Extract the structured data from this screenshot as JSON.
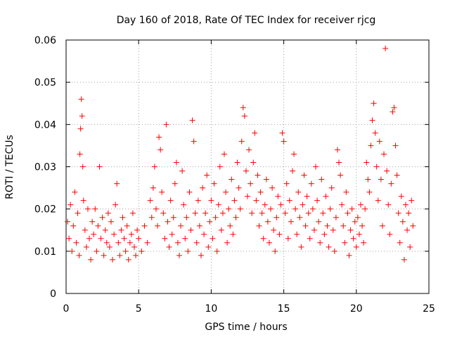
{
  "chart_data": {
    "type": "scatter",
    "title": "Day 160 of 2018, Rate Of TEC Index for receiver rjcg",
    "xlabel": "GPS time / hours",
    "ylabel": "ROTI / TECUs",
    "xlim": [
      0,
      25
    ],
    "ylim": [
      0,
      0.06
    ],
    "xticks": [
      0,
      5,
      10,
      15,
      20,
      25
    ],
    "yticks": [
      0,
      0.01,
      0.02,
      0.03,
      0.04,
      0.05,
      0.06
    ],
    "xtick_labels": [
      "0",
      "5",
      "10",
      "15",
      "20",
      "25"
    ],
    "ytick_labels": [
      "0",
      "0.01",
      "0.02",
      "0.03",
      "0.04",
      "0.05",
      "0.06"
    ],
    "grid": true,
    "marker": "+",
    "color": "#ff0000",
    "series": [
      {
        "name": "ROTI",
        "points": [
          [
            0.1,
            0.017
          ],
          [
            0.2,
            0.013
          ],
          [
            0.3,
            0.021
          ],
          [
            0.4,
            0.01
          ],
          [
            0.5,
            0.016
          ],
          [
            0.6,
            0.024
          ],
          [
            0.7,
            0.012
          ],
          [
            0.8,
            0.019
          ],
          [
            0.9,
            0.009
          ],
          [
            0.95,
            0.033
          ],
          [
            1.0,
            0.039
          ],
          [
            1.05,
            0.046
          ],
          [
            1.1,
            0.042
          ],
          [
            1.15,
            0.03
          ],
          [
            1.2,
            0.022
          ],
          [
            1.3,
            0.015
          ],
          [
            1.4,
            0.011
          ],
          [
            1.5,
            0.02
          ],
          [
            1.6,
            0.013
          ],
          [
            1.7,
            0.008
          ],
          [
            1.8,
            0.017
          ],
          [
            1.9,
            0.014
          ],
          [
            2.0,
            0.02
          ],
          [
            2.1,
            0.01
          ],
          [
            2.2,
            0.016
          ],
          [
            2.3,
            0.03
          ],
          [
            2.4,
            0.013
          ],
          [
            2.5,
            0.018
          ],
          [
            2.6,
            0.009
          ],
          [
            2.7,
            0.015
          ],
          [
            2.8,
            0.012
          ],
          [
            2.9,
            0.019
          ],
          [
            3.0,
            0.011
          ],
          [
            3.1,
            0.017
          ],
          [
            3.2,
            0.008
          ],
          [
            3.3,
            0.014
          ],
          [
            3.4,
            0.021
          ],
          [
            3.5,
            0.026
          ],
          [
            3.6,
            0.012
          ],
          [
            3.7,
            0.009
          ],
          [
            3.8,
            0.015
          ],
          [
            3.9,
            0.018
          ],
          [
            4.0,
            0.013
          ],
          [
            4.1,
            0.01
          ],
          [
            4.2,
            0.016
          ],
          [
            4.3,
            0.008
          ],
          [
            4.4,
            0.012
          ],
          [
            4.5,
            0.014
          ],
          [
            4.6,
            0.019
          ],
          [
            4.7,
            0.011
          ],
          [
            4.8,
            0.009
          ],
          [
            4.9,
            0.015
          ],
          [
            5.0,
            0.013
          ],
          [
            5.2,
            0.01
          ],
          [
            5.4,
            0.016
          ],
          [
            5.6,
            0.012
          ],
          [
            5.8,
            0.022
          ],
          [
            5.9,
            0.018
          ],
          [
            6.0,
            0.025
          ],
          [
            6.1,
            0.03
          ],
          [
            6.2,
            0.02
          ],
          [
            6.3,
            0.016
          ],
          [
            6.4,
            0.037
          ],
          [
            6.5,
            0.034
          ],
          [
            6.6,
            0.024
          ],
          [
            6.7,
            0.019
          ],
          [
            6.8,
            0.013
          ],
          [
            6.9,
            0.04
          ],
          [
            7.0,
            0.017
          ],
          [
            7.1,
            0.011
          ],
          [
            7.2,
            0.022
          ],
          [
            7.3,
            0.014
          ],
          [
            7.4,
            0.018
          ],
          [
            7.5,
            0.026
          ],
          [
            7.6,
            0.031
          ],
          [
            7.7,
            0.012
          ],
          [
            7.8,
            0.009
          ],
          [
            7.9,
            0.016
          ],
          [
            8.0,
            0.029
          ],
          [
            8.1,
            0.021
          ],
          [
            8.2,
            0.013
          ],
          [
            8.3,
            0.018
          ],
          [
            8.4,
            0.01
          ],
          [
            8.5,
            0.024
          ],
          [
            8.6,
            0.015
          ],
          [
            8.7,
            0.041
          ],
          [
            8.8,
            0.036
          ],
          [
            8.9,
            0.019
          ],
          [
            9.0,
            0.012
          ],
          [
            9.1,
            0.022
          ],
          [
            9.2,
            0.016
          ],
          [
            9.3,
            0.009
          ],
          [
            9.4,
            0.025
          ],
          [
            9.5,
            0.014
          ],
          [
            9.6,
            0.019
          ],
          [
            9.7,
            0.028
          ],
          [
            9.8,
            0.011
          ],
          [
            9.9,
            0.017
          ],
          [
            10.0,
            0.022
          ],
          [
            10.1,
            0.013
          ],
          [
            10.2,
            0.026
          ],
          [
            10.3,
            0.018
          ],
          [
            10.4,
            0.01
          ],
          [
            10.5,
            0.021
          ],
          [
            10.6,
            0.03
          ],
          [
            10.7,
            0.015
          ],
          [
            10.8,
            0.019
          ],
          [
            10.9,
            0.033
          ],
          [
            11.0,
            0.024
          ],
          [
            11.1,
            0.012
          ],
          [
            11.2,
            0.02
          ],
          [
            11.3,
            0.016
          ],
          [
            11.4,
            0.027
          ],
          [
            11.5,
            0.014
          ],
          [
            11.6,
            0.022
          ],
          [
            11.7,
            0.018
          ],
          [
            11.8,
            0.031
          ],
          [
            11.9,
            0.025
          ],
          [
            12.0,
            0.02
          ],
          [
            12.1,
            0.036
          ],
          [
            12.2,
            0.044
          ],
          [
            12.3,
            0.042
          ],
          [
            12.4,
            0.029
          ],
          [
            12.5,
            0.023
          ],
          [
            12.6,
            0.034
          ],
          [
            12.7,
            0.026
          ],
          [
            12.8,
            0.019
          ],
          [
            12.9,
            0.031
          ],
          [
            13.0,
            0.038
          ],
          [
            13.1,
            0.022
          ],
          [
            13.2,
            0.028
          ],
          [
            13.3,
            0.016
          ],
          [
            13.4,
            0.024
          ],
          [
            13.5,
            0.019
          ],
          [
            13.6,
            0.013
          ],
          [
            13.7,
            0.021
          ],
          [
            13.8,
            0.027
          ],
          [
            13.9,
            0.017
          ],
          [
            14.0,
            0.012
          ],
          [
            14.1,
            0.02
          ],
          [
            14.2,
            0.025
          ],
          [
            14.3,
            0.015
          ],
          [
            14.4,
            0.01
          ],
          [
            14.5,
            0.018
          ],
          [
            14.6,
            0.023
          ],
          [
            14.7,
            0.014
          ],
          [
            14.8,
            0.021
          ],
          [
            14.9,
            0.038
          ],
          [
            15.0,
            0.036
          ],
          [
            15.1,
            0.019
          ],
          [
            15.2,
            0.026
          ],
          [
            15.3,
            0.013
          ],
          [
            15.4,
            0.022
          ],
          [
            15.5,
            0.017
          ],
          [
            15.6,
            0.029
          ],
          [
            15.7,
            0.033
          ],
          [
            15.8,
            0.02
          ],
          [
            15.9,
            0.014
          ],
          [
            16.0,
            0.024
          ],
          [
            16.1,
            0.018
          ],
          [
            16.2,
            0.011
          ],
          [
            16.3,
            0.021
          ],
          [
            16.4,
            0.028
          ],
          [
            16.5,
            0.016
          ],
          [
            16.6,
            0.023
          ],
          [
            16.7,
            0.019
          ],
          [
            16.8,
            0.013
          ],
          [
            16.9,
            0.026
          ],
          [
            17.0,
            0.02
          ],
          [
            17.1,
            0.015
          ],
          [
            17.2,
            0.03
          ],
          [
            17.3,
            0.022
          ],
          [
            17.4,
            0.017
          ],
          [
            17.5,
            0.012
          ],
          [
            17.6,
            0.027
          ],
          [
            17.7,
            0.019
          ],
          [
            17.8,
            0.014
          ],
          [
            17.9,
            0.023
          ],
          [
            18.0,
            0.016
          ],
          [
            18.1,
            0.011
          ],
          [
            18.2,
            0.02
          ],
          [
            18.3,
            0.025
          ],
          [
            18.4,
            0.015
          ],
          [
            18.5,
            0.01
          ],
          [
            18.6,
            0.018
          ],
          [
            18.7,
            0.034
          ],
          [
            18.8,
            0.031
          ],
          [
            18.9,
            0.028
          ],
          [
            19.0,
            0.021
          ],
          [
            19.1,
            0.016
          ],
          [
            19.2,
            0.012
          ],
          [
            19.3,
            0.024
          ],
          [
            19.4,
            0.019
          ],
          [
            19.5,
            0.009
          ],
          [
            19.6,
            0.015
          ],
          [
            19.7,
            0.02
          ],
          [
            19.8,
            0.013
          ],
          [
            19.9,
            0.017
          ],
          [
            20.0,
            0.011
          ],
          [
            20.1,
            0.018
          ],
          [
            20.2,
            0.014
          ],
          [
            20.3,
            0.021
          ],
          [
            20.4,
            0.016
          ],
          [
            20.5,
            0.012
          ],
          [
            20.6,
            0.02
          ],
          [
            20.7,
            0.031
          ],
          [
            20.8,
            0.027
          ],
          [
            20.9,
            0.024
          ],
          [
            21.0,
            0.035
          ],
          [
            21.1,
            0.041
          ],
          [
            21.2,
            0.045
          ],
          [
            21.3,
            0.038
          ],
          [
            21.4,
            0.03
          ],
          [
            21.5,
            0.022
          ],
          [
            21.6,
            0.036
          ],
          [
            21.7,
            0.027
          ],
          [
            21.8,
            0.016
          ],
          [
            21.9,
            0.033
          ],
          [
            22.0,
            0.058
          ],
          [
            22.1,
            0.029
          ],
          [
            22.2,
            0.021
          ],
          [
            22.3,
            0.014
          ],
          [
            22.4,
            0.026
          ],
          [
            22.5,
            0.043
          ],
          [
            22.6,
            0.044
          ],
          [
            22.7,
            0.035
          ],
          [
            22.8,
            0.028
          ],
          [
            22.9,
            0.019
          ],
          [
            23.0,
            0.012
          ],
          [
            23.1,
            0.023
          ],
          [
            23.2,
            0.017
          ],
          [
            23.3,
            0.008
          ],
          [
            23.4,
            0.021
          ],
          [
            23.5,
            0.015
          ],
          [
            23.6,
            0.019
          ],
          [
            23.7,
            0.011
          ],
          [
            23.8,
            0.022
          ],
          [
            23.9,
            0.016
          ]
        ]
      }
    ]
  }
}
